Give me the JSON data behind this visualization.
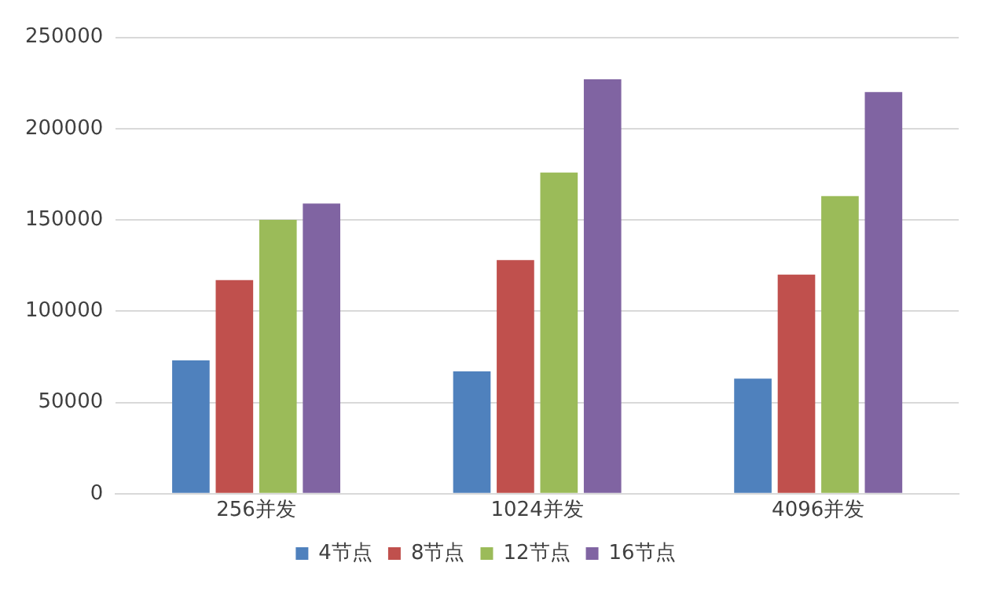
{
  "chart_data": {
    "type": "bar",
    "categories": [
      "256并发",
      "1024并发",
      "4096并发"
    ],
    "series": [
      {
        "name": "4节点",
        "color": "#4f81bd",
        "values": [
          73000,
          67000,
          63000
        ]
      },
      {
        "name": "8节点",
        "color": "#c0504d",
        "values": [
          117000,
          128000,
          120000
        ]
      },
      {
        "name": "12节点",
        "color": "#9bbb59",
        "values": [
          150000,
          176000,
          163000
        ]
      },
      {
        "name": "16节点",
        "color": "#8064a2",
        "values": [
          159000,
          227000,
          220000
        ]
      }
    ],
    "ylim": [
      0,
      250000
    ],
    "yticks": [
      0,
      50000,
      100000,
      150000,
      200000,
      250000
    ],
    "grid": "y",
    "legend": "bottom"
  }
}
